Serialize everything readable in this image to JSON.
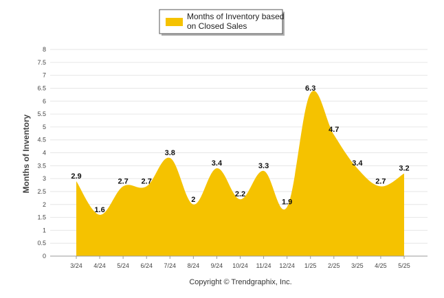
{
  "chart_data": {
    "type": "area",
    "categories": [
      "3/24",
      "4/24",
      "5/24",
      "6/24",
      "7/24",
      "8/24",
      "9/24",
      "10/24",
      "11/24",
      "12/24",
      "1/25",
      "2/25",
      "3/25",
      "4/25",
      "5/25"
    ],
    "series": [
      {
        "name": "Months of Inventory based on Closed Sales",
        "values": [
          2.9,
          1.6,
          2.7,
          2.7,
          3.8,
          2,
          3.4,
          2.2,
          3.3,
          1.9,
          6.3,
          4.7,
          3.4,
          2.7,
          3.2
        ]
      }
    ],
    "legend_lines": [
      "Months of Inventory based",
      "on Closed Sales"
    ],
    "ylabel": "Months of Inventory",
    "xlabel": "",
    "ylim": [
      0,
      8
    ],
    "yticks": [
      "0",
      "0.5",
      "1",
      "1.5",
      "2",
      "2.5",
      "3",
      "3.5",
      "4",
      "4.5",
      "5",
      "5.5",
      "6",
      "6.5",
      "7",
      "7.5",
      "8"
    ],
    "data_labels": [
      "2.9",
      "1.6",
      "2.7",
      "2.7",
      "3.8",
      "2",
      "3.4",
      "2.2",
      "3.3",
      "1.9",
      "6.3",
      "4.7",
      "3.4",
      "2.7",
      "3.2"
    ],
    "grid": true,
    "legend_position": "top-center",
    "colors": {
      "fill": "#f5c200",
      "grid": "#e6e6e6",
      "axis": "#999999"
    }
  },
  "footer": {
    "copyright": "Copyright © Trendgraphix, Inc."
  }
}
